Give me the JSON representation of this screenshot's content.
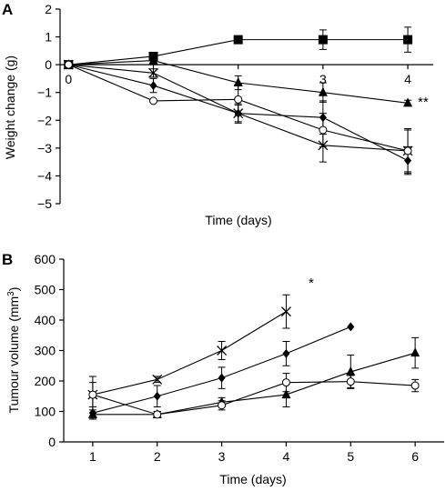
{
  "chart_data": [
    {
      "panel": "A",
      "type": "line",
      "xlabel": "Time (days)",
      "ylabel": "Weight change (g)",
      "ylim": [
        -5,
        2
      ],
      "yticks": [
        "2",
        "1",
        "0",
        "−1",
        "−2",
        "−3",
        "−4",
        "−5"
      ],
      "x_tick_labels": [
        {
          "x": 0,
          "label": "0"
        },
        {
          "x": 3,
          "label": "3"
        },
        {
          "x": 4,
          "label": "4"
        }
      ],
      "xlim": [
        -0.1,
        4.3
      ],
      "annotation": "**",
      "series": [
        {
          "marker": "square",
          "x": [
            0,
            1,
            2,
            3,
            4
          ],
          "y": [
            0,
            0.3,
            0.9,
            0.9,
            0.9
          ],
          "err": [
            0,
            0,
            0.1,
            0.35,
            0.45
          ]
        },
        {
          "marker": "triangle",
          "x": [
            0,
            1,
            2,
            3,
            4
          ],
          "y": [
            0,
            0.15,
            -0.65,
            -1.0,
            -1.38
          ],
          "err": [
            0,
            0.1,
            0.25,
            0.35,
            0.1
          ]
        },
        {
          "marker": "x",
          "x": [
            0,
            1,
            2,
            3,
            4
          ],
          "y": [
            0,
            -0.3,
            -1.75,
            -2.9,
            -3.1
          ],
          "err": [
            0,
            0.15,
            0.35,
            0.6,
            0.8
          ]
        },
        {
          "marker": "diamond",
          "x": [
            0,
            1,
            2,
            3,
            4
          ],
          "y": [
            0,
            -0.75,
            -1.75,
            -1.9,
            -3.45
          ],
          "err": [
            0,
            0.25,
            0.3,
            0.6,
            0.5
          ]
        },
        {
          "marker": "circle",
          "x": [
            0,
            1,
            2,
            3,
            4
          ],
          "y": [
            0,
            -1.3,
            -1.25,
            -2.35,
            -3.1
          ],
          "err": [
            0,
            0.05,
            0.55,
            0.6,
            0.75
          ]
        }
      ]
    },
    {
      "panel": "B",
      "type": "line",
      "xlabel": "Time (days)",
      "ylabel": "Tumour volume (mm",
      "ylabel_sup": "3",
      "ylabel_close": ")",
      "ylim": [
        0,
        600
      ],
      "yticks": [
        0,
        100,
        200,
        300,
        400,
        500,
        600
      ],
      "xlim": [
        0.55,
        6.45
      ],
      "categories": [
        "1",
        "2",
        "3",
        "4",
        "5",
        "6"
      ],
      "annotation": "*",
      "series": [
        {
          "marker": "x",
          "x": [
            1,
            2,
            3,
            4
          ],
          "y": [
            155,
            205,
            300,
            428
          ],
          "err": [
            60,
            10,
            30,
            55
          ]
        },
        {
          "marker": "diamond",
          "x": [
            1,
            2,
            3,
            4,
            5
          ],
          "y": [
            95,
            150,
            210,
            290,
            378
          ],
          "err": [
            20,
            35,
            35,
            40,
            0
          ]
        },
        {
          "marker": "triangle",
          "x": [
            1,
            2,
            3,
            4,
            5,
            6
          ],
          "y": [
            90,
            90,
            130,
            155,
            230,
            292
          ],
          "err": [
            15,
            10,
            15,
            40,
            55,
            50
          ]
        },
        {
          "marker": "circle",
          "x": [
            1,
            2,
            3,
            4,
            5,
            6
          ],
          "y": [
            155,
            90,
            120,
            195,
            198,
            185
          ],
          "err": [
            40,
            10,
            15,
            30,
            20,
            20
          ]
        }
      ]
    }
  ]
}
